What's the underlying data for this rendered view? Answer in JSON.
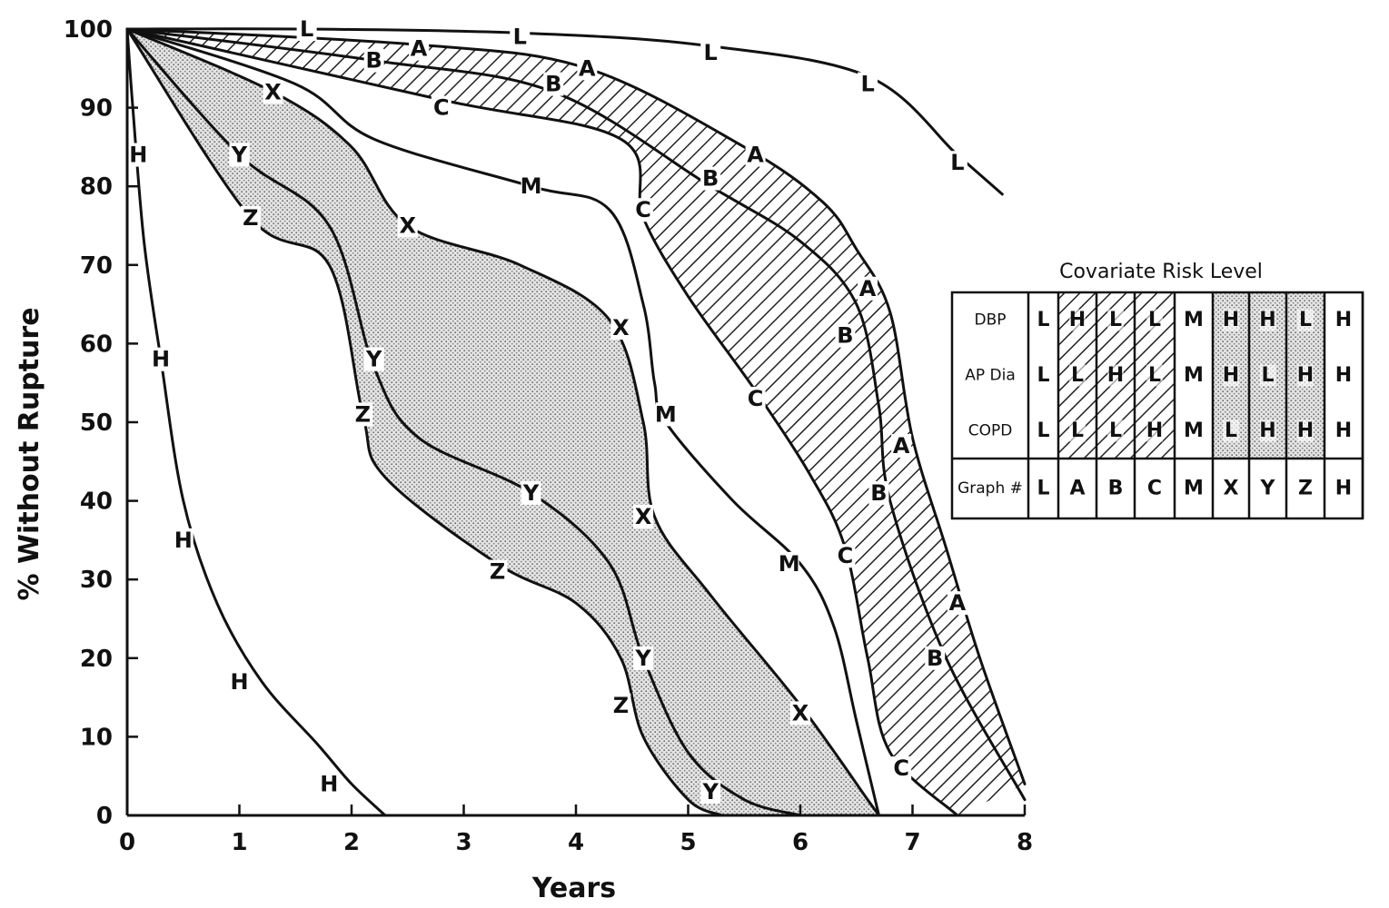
{
  "chart_data": {
    "type": "line",
    "title": "",
    "xlabel": "Years",
    "ylabel": "% Without Rupture",
    "xlim": [
      0,
      8
    ],
    "ylim": [
      0,
      100
    ],
    "x_ticks": [
      "0",
      "1",
      "2",
      "3",
      "4",
      "5",
      "6",
      "7",
      "8"
    ],
    "y_ticks": [
      "0",
      "10",
      "20",
      "30",
      "40",
      "50",
      "60",
      "70",
      "80",
      "90",
      "100"
    ],
    "grid": false,
    "series": [
      {
        "name": "L",
        "points": [
          [
            0,
            100
          ],
          [
            1.6,
            100
          ],
          [
            3.5,
            99.5
          ],
          [
            5.1,
            98
          ],
          [
            6.6,
            94
          ],
          [
            7.4,
            84
          ],
          [
            7.8,
            79
          ]
        ],
        "label_at": [
          [
            1.6,
            100
          ],
          [
            3.5,
            99
          ],
          [
            5.2,
            97
          ],
          [
            6.6,
            93
          ],
          [
            7.4,
            83
          ]
        ]
      },
      {
        "name": "A",
        "points": [
          [
            0,
            100
          ],
          [
            2.6,
            98
          ],
          [
            4.1,
            95
          ],
          [
            5.5,
            85
          ],
          [
            6.2,
            78
          ],
          [
            6.5,
            72
          ],
          [
            6.8,
            64
          ],
          [
            7.0,
            48
          ],
          [
            7.3,
            34
          ],
          [
            7.6,
            20
          ],
          [
            8.0,
            4
          ]
        ],
        "label_at": [
          [
            2.6,
            97.5
          ],
          [
            4.1,
            95
          ],
          [
            5.6,
            84
          ],
          [
            6.6,
            67
          ],
          [
            6.9,
            47
          ],
          [
            7.4,
            27
          ]
        ]
      },
      {
        "name": "B",
        "points": [
          [
            0,
            100
          ],
          [
            2.2,
            96
          ],
          [
            3.8,
            92
          ],
          [
            5.2,
            80
          ],
          [
            6.0,
            73
          ],
          [
            6.5,
            65
          ],
          [
            6.7,
            52
          ],
          [
            6.8,
            40
          ],
          [
            7.3,
            20
          ],
          [
            8.0,
            2
          ]
        ],
        "label_at": [
          [
            2.2,
            96
          ],
          [
            3.8,
            93
          ],
          [
            5.2,
            81
          ],
          [
            6.4,
            61
          ],
          [
            6.7,
            41
          ],
          [
            7.2,
            20
          ]
        ]
      },
      {
        "name": "C",
        "points": [
          [
            0,
            100
          ],
          [
            2.8,
            91
          ],
          [
            4.4,
            86
          ],
          [
            4.6,
            76
          ],
          [
            5.0,
            66
          ],
          [
            5.6,
            54
          ],
          [
            6.1,
            43
          ],
          [
            6.4,
            34
          ],
          [
            6.6,
            20
          ],
          [
            6.8,
            8
          ],
          [
            7.4,
            0
          ]
        ],
        "label_at": [
          [
            2.8,
            90
          ],
          [
            4.6,
            77
          ],
          [
            5.6,
            53
          ],
          [
            6.4,
            33
          ],
          [
            6.9,
            6
          ]
        ]
      },
      {
        "name": "M",
        "points": [
          [
            0,
            100
          ],
          [
            1.5,
            93
          ],
          [
            2.2,
            86
          ],
          [
            3.6,
            80
          ],
          [
            4.3,
            77
          ],
          [
            4.6,
            65
          ],
          [
            4.7,
            55
          ],
          [
            4.8,
            50
          ],
          [
            5.4,
            40
          ],
          [
            6.0,
            32
          ],
          [
            6.3,
            24
          ],
          [
            6.5,
            12
          ],
          [
            6.7,
            0
          ]
        ],
        "label_at": [
          [
            3.6,
            80
          ],
          [
            4.8,
            51
          ],
          [
            5.9,
            32
          ]
        ]
      },
      {
        "name": "X",
        "points": [
          [
            0,
            100
          ],
          [
            1.3,
            92
          ],
          [
            2.0,
            85
          ],
          [
            2.5,
            75
          ],
          [
            3.5,
            70
          ],
          [
            4.3,
            63
          ],
          [
            4.6,
            50
          ],
          [
            4.7,
            38
          ],
          [
            5.2,
            28
          ],
          [
            6.0,
            14
          ],
          [
            6.6,
            2
          ],
          [
            6.7,
            0
          ]
        ],
        "label_at": [
          [
            1.3,
            92
          ],
          [
            2.5,
            75
          ],
          [
            4.4,
            62
          ],
          [
            4.6,
            38
          ],
          [
            6.0,
            13
          ]
        ]
      },
      {
        "name": "Y",
        "points": [
          [
            0,
            100
          ],
          [
            1.0,
            84
          ],
          [
            1.8,
            75
          ],
          [
            2.2,
            57
          ],
          [
            2.6,
            48
          ],
          [
            3.6,
            41
          ],
          [
            4.3,
            32
          ],
          [
            4.6,
            20
          ],
          [
            5.0,
            8
          ],
          [
            5.5,
            2
          ],
          [
            6.0,
            0
          ]
        ],
        "label_at": [
          [
            1.0,
            84
          ],
          [
            2.2,
            58
          ],
          [
            3.6,
            41
          ],
          [
            4.6,
            20
          ],
          [
            5.2,
            3
          ]
        ]
      },
      {
        "name": "Z",
        "points": [
          [
            0,
            100
          ],
          [
            1.1,
            76
          ],
          [
            1.8,
            70
          ],
          [
            2.1,
            51
          ],
          [
            2.3,
            43
          ],
          [
            3.3,
            32
          ],
          [
            4.0,
            27
          ],
          [
            4.4,
            20
          ],
          [
            4.6,
            10
          ],
          [
            5.0,
            2
          ],
          [
            5.3,
            0
          ]
        ],
        "label_at": [
          [
            1.1,
            76
          ],
          [
            2.1,
            51
          ],
          [
            3.3,
            31
          ],
          [
            4.4,
            14
          ]
        ]
      },
      {
        "name": "H",
        "points": [
          [
            0,
            100
          ],
          [
            0.05,
            90
          ],
          [
            0.15,
            73
          ],
          [
            0.3,
            58
          ],
          [
            0.5,
            40
          ],
          [
            0.8,
            27
          ],
          [
            1.2,
            17
          ],
          [
            1.7,
            9
          ],
          [
            2.0,
            4
          ],
          [
            2.3,
            0
          ]
        ],
        "label_at": [
          [
            0.1,
            84
          ],
          [
            0.3,
            58
          ],
          [
            0.5,
            35
          ],
          [
            1.0,
            17
          ],
          [
            1.8,
            4
          ]
        ]
      }
    ],
    "legend": {
      "title": "Covariate Risk Level",
      "placement": "right",
      "row_headers": [
        "DBP",
        "AP Dia",
        "COPD",
        "Graph #"
      ],
      "columns": [
        {
          "graph": "L",
          "values": [
            "L",
            "L",
            "L"
          ],
          "fill": "none"
        },
        {
          "graph": "A",
          "values": [
            "H",
            "L",
            "L"
          ],
          "fill": "hatch"
        },
        {
          "graph": "B",
          "values": [
            "L",
            "H",
            "L"
          ],
          "fill": "hatch"
        },
        {
          "graph": "C",
          "values": [
            "L",
            "L",
            "H"
          ],
          "fill": "hatch"
        },
        {
          "graph": "M",
          "values": [
            "M",
            "M",
            "M"
          ],
          "fill": "none"
        },
        {
          "graph": "X",
          "values": [
            "H",
            "H",
            "L"
          ],
          "fill": "stipple"
        },
        {
          "graph": "Y",
          "values": [
            "H",
            "L",
            "H"
          ],
          "fill": "stipple"
        },
        {
          "graph": "Z",
          "values": [
            "L",
            "H",
            "H"
          ],
          "fill": "stipple"
        },
        {
          "graph": "H",
          "values": [
            "H",
            "H",
            "H"
          ],
          "fill": "none"
        }
      ]
    },
    "shaded_bands": [
      {
        "between": [
          "A",
          "C"
        ],
        "pattern": "hatch"
      },
      {
        "between": [
          "X",
          "Z"
        ],
        "pattern": "stipple"
      }
    ]
  }
}
